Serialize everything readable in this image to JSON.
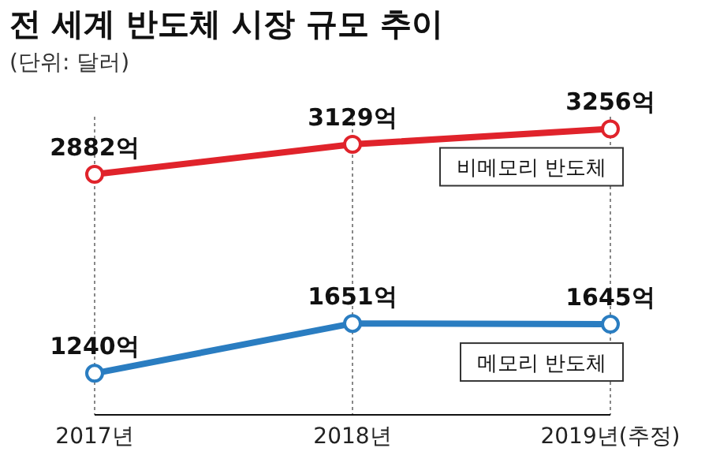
{
  "chart_data": {
    "type": "line",
    "title": "전 세계 반도체 시장 규모 추이",
    "subtitle": "(단위: 달러)",
    "categories": [
      "2017년",
      "2018년",
      "2019년(추정)"
    ],
    "series": [
      {
        "name": "비메모리 반도체",
        "color": "#e0232b",
        "values": [
          2882,
          3129,
          3256
        ],
        "value_labels": [
          "2882억",
          "3129억",
          "3256억"
        ]
      },
      {
        "name": "메모리 반도체",
        "color": "#2a7dc1",
        "values": [
          1240,
          1651,
          1645
        ],
        "value_labels": [
          "1240억",
          "1651억",
          "1645억"
        ]
      }
    ],
    "grid": "x",
    "marker": "circle",
    "line_style": "solid",
    "legend": false
  }
}
